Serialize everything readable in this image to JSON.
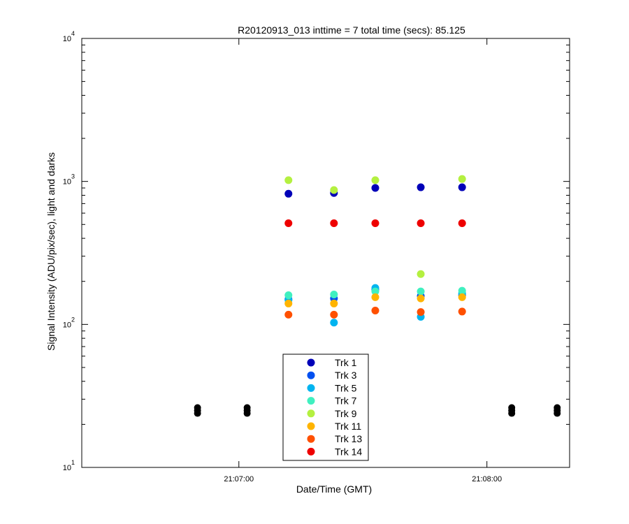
{
  "chart_data": {
    "type": "scatter",
    "title": "R20120913_013 inttime = 7 total time (secs): 85.125",
    "xlabel": "Date/Time (GMT)",
    "ylabel": "Signal Intensity (ADU/pix/sec), light and darks",
    "x_axis": {
      "type": "time",
      "min": "21:06:22",
      "max": "21:08:20",
      "ticks": [
        "21:07:00",
        "21:08:00"
      ]
    },
    "y_axis": {
      "scale": "log",
      "ylim": [
        10,
        10000
      ],
      "ticks": [
        {
          "base": "10",
          "exp": "1"
        },
        {
          "base": "10",
          "exp": "2"
        },
        {
          "base": "10",
          "exp": "3"
        },
        {
          "base": "10",
          "exp": "4"
        }
      ]
    },
    "grid": false,
    "legend": {
      "position": "bottom-center"
    },
    "x_times": [
      "21:07:12",
      "21:07:23",
      "21:07:33",
      "21:07:44",
      "21:07:54"
    ],
    "series": [
      {
        "name": "Trk 1",
        "color": "#0000b8",
        "values": [
          820,
          830,
          900,
          910,
          910
        ]
      },
      {
        "name": "Trk 3",
        "color": "#0050f0",
        "values": [
          150,
          152,
          175,
          158,
          160
        ]
      },
      {
        "name": "Trk 5",
        "color": "#00b4f0",
        "values": [
          148,
          103,
          180,
          113,
          165
        ]
      },
      {
        "name": "Trk 7",
        "color": "#40f0c0",
        "values": [
          160,
          162,
          170,
          170,
          172
        ]
      },
      {
        "name": "Trk 9",
        "color": "#b4f040",
        "values": [
          1020,
          870,
          1020,
          225,
          1040
        ]
      },
      {
        "name": "Trk 11",
        "color": "#ffb400",
        "values": [
          140,
          140,
          155,
          152,
          155
        ]
      },
      {
        "name": "Trk 13",
        "color": "#ff5000",
        "values": [
          117,
          117,
          125,
          122,
          123
        ]
      },
      {
        "name": "Trk 14",
        "color": "#ee0000",
        "values": [
          510,
          510,
          510,
          510,
          510
        ]
      }
    ],
    "darks": {
      "color": "#000000",
      "x_times": [
        "21:06:50",
        "21:07:02",
        "21:08:06",
        "21:08:17"
      ],
      "values": [
        25,
        25,
        25,
        25
      ]
    }
  }
}
